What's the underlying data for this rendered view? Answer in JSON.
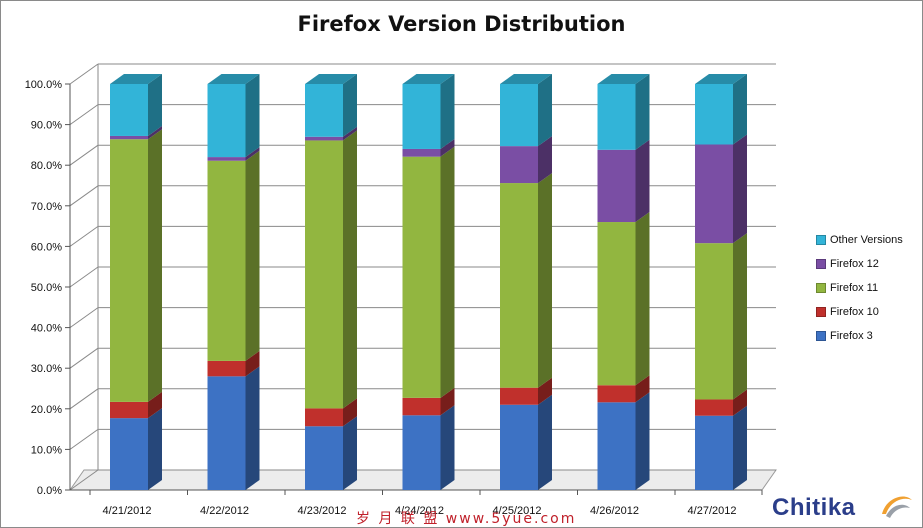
{
  "chart_data": {
    "type": "bar",
    "title": "Firefox Version Distribution",
    "categories": [
      "4/21/2012",
      "4/22/2012",
      "4/23/2012",
      "4/24/2012",
      "4/25/2012",
      "4/26/2012",
      "4/27/2012"
    ],
    "series": [
      {
        "name": "Firefox 3",
        "color": "#3d72c4",
        "values": [
          17.7,
          28.0,
          15.7,
          18.4,
          21.0,
          21.6,
          18.3
        ]
      },
      {
        "name": "Firefox 10",
        "color": "#c0302c",
        "values": [
          4.0,
          3.8,
          4.4,
          4.3,
          4.2,
          4.2,
          4.0
        ]
      },
      {
        "name": "Firefox 11",
        "color": "#92b640",
        "values": [
          64.7,
          49.3,
          66.0,
          59.4,
          50.4,
          40.2,
          38.5
        ]
      },
      {
        "name": "Firefox 12",
        "color": "#7a4ea4",
        "values": [
          0.8,
          0.9,
          0.9,
          1.9,
          9.1,
          17.8,
          24.3
        ]
      },
      {
        "name": "Other Versions",
        "color": "#32b4d8",
        "values": [
          12.8,
          18.0,
          13.0,
          16.0,
          15.3,
          16.2,
          14.9
        ]
      }
    ],
    "yticks": [
      "0.0%",
      "10.0%",
      "20.0%",
      "30.0%",
      "40.0%",
      "50.0%",
      "60.0%",
      "70.0%",
      "80.0%",
      "90.0%",
      "100.0%"
    ],
    "ylim": [
      0,
      100
    ],
    "stacked": true,
    "legend_position": "right",
    "grid": true
  },
  "legend": {
    "items": [
      {
        "label": "Other Versions",
        "color": "#32b4d8"
      },
      {
        "label": "Firefox 12",
        "color": "#7a4ea4"
      },
      {
        "label": "Firefox 11",
        "color": "#92b640"
      },
      {
        "label": "Firefox 10",
        "color": "#c0302c"
      },
      {
        "label": "Firefox 3",
        "color": "#3d72c4"
      }
    ]
  },
  "logo": {
    "text": "Chitika"
  },
  "watermark": {
    "text": "岁 月 联 盟  www.5yue.com"
  }
}
